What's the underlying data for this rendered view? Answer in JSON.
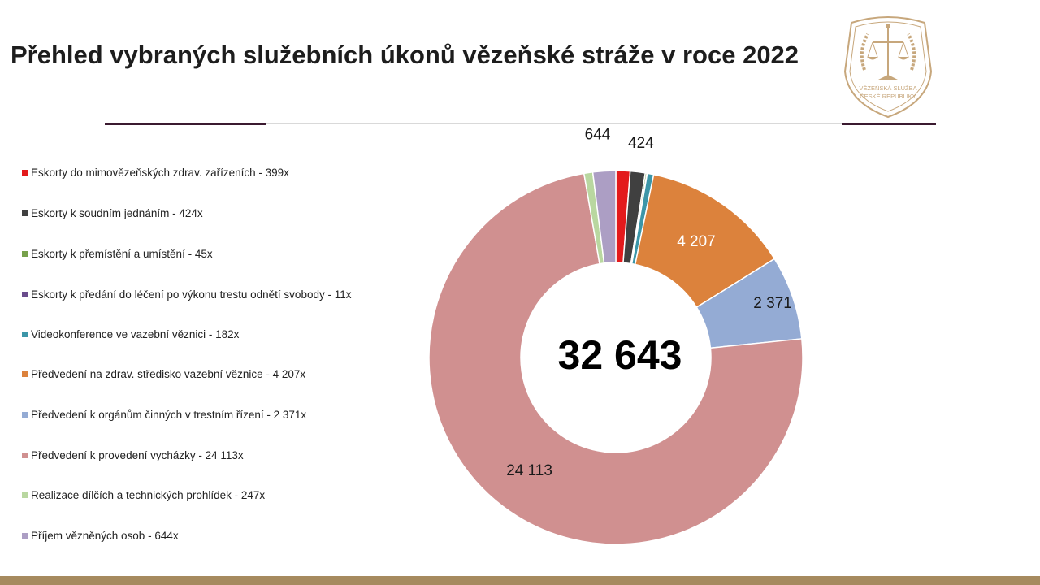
{
  "title": "Přehled vybraných služebních úkonů vězeňské stráže v roce 2022",
  "logo": {
    "text_top": "VĚZEŇSKÁ SLUŽBA",
    "text_bottom": "ČESKÉ REPUBLIKY"
  },
  "center_total": "32 643",
  "legend": [
    "Eskorty do mimovězeňských zdrav. zařízeních - 399x",
    "Eskorty k soudním jednáním - 424x",
    "Eskorty k přemístění a umístění - 45x",
    "Eskorty k předání do léčení po výkonu trestu odnětí svobody - 11x",
    "Videokonference ve vazební věznici - 182x",
    "Předvedení na zdrav. středisko vazební věznice - 4 207x",
    "Předvedení k orgánům činných v trestním řízení - 2 371x",
    "Předvedení k provedení vycházky - 24 113x",
    "Realizace dílčích a technických prohlídek - 247x",
    "Příjem vězněných osob - 644x"
  ],
  "chart_data": {
    "type": "pie",
    "donut": true,
    "categories": [
      "Eskorty do mimovězeňských zdrav. zařízeních",
      "Eskorty k soudním jednáním",
      "Eskorty k přemístění a umístění",
      "Eskorty k předání do léčení po výkonu trestu odnětí svobody",
      "Videokonference ve vazební věznici",
      "Předvedení na zdrav. středisko vazební věznice",
      "Předvedení k orgánům činných v trestním řízení",
      "Předvedení k provedení vycházky",
      "Realizace dílčích a technických prohlídek",
      "Příjem vězněných osob"
    ],
    "values": [
      399,
      424,
      45,
      11,
      182,
      4207,
      2371,
      24113,
      247,
      644
    ],
    "colors": [
      "#e31a1c",
      "#404040",
      "#77a14b",
      "#6a4c8c",
      "#3c96a8",
      "#dc823c",
      "#94abd4",
      "#d09090",
      "#b9d7a0",
      "#ac9ec4"
    ],
    "data_labels": [
      "",
      "424",
      "",
      "",
      "",
      "4 207",
      "2 371",
      "24 113",
      "",
      "644"
    ],
    "total": "32 643",
    "legend_position": "left"
  }
}
